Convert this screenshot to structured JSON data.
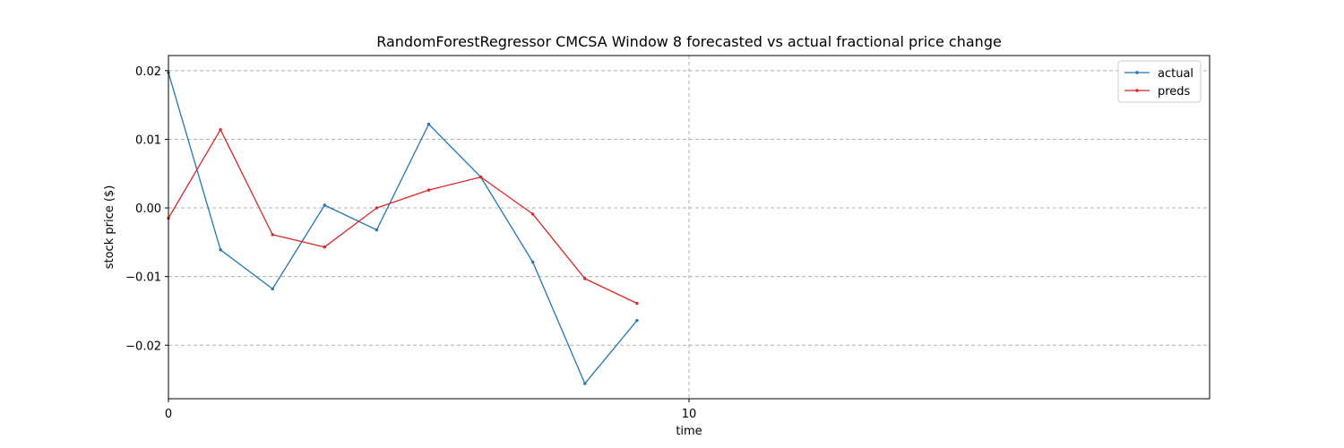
{
  "chart_data": {
    "type": "line",
    "title": "RandomForestRegressor CMCSA Window 8 forecasted vs actual fractional price change",
    "xlabel": "time",
    "ylabel": "stock price ($)",
    "xlim": [
      0,
      20
    ],
    "ylim": [
      -0.0278,
      0.0222
    ],
    "xticks": [
      0,
      10
    ],
    "xtick_labels": [
      "0",
      "10"
    ],
    "yticks": [
      -0.02,
      -0.01,
      0.0,
      0.01,
      0.02
    ],
    "ytick_labels": [
      "−0.02",
      "−0.01",
      "0.00",
      "0.01",
      "0.02"
    ],
    "grid": true,
    "legend": "top-right",
    "series": [
      {
        "name": "actual",
        "color": "#1f77b4",
        "x": [
          0,
          1,
          2,
          3,
          4,
          5,
          6,
          7,
          8,
          9
        ],
        "values": [
          0.0197,
          -0.0061,
          -0.0118,
          0.0004,
          -0.0032,
          0.0122,
          0.0045,
          -0.0079,
          -0.0256,
          -0.0164
        ]
      },
      {
        "name": "preds",
        "color": "#d62728",
        "x": [
          0,
          1,
          2,
          3,
          4,
          5,
          6,
          7,
          8,
          9
        ],
        "values": [
          -0.0015,
          0.0114,
          -0.0039,
          -0.0057,
          0.0,
          0.0026,
          0.0045,
          -0.0009,
          -0.0103,
          -0.0139
        ]
      }
    ]
  }
}
